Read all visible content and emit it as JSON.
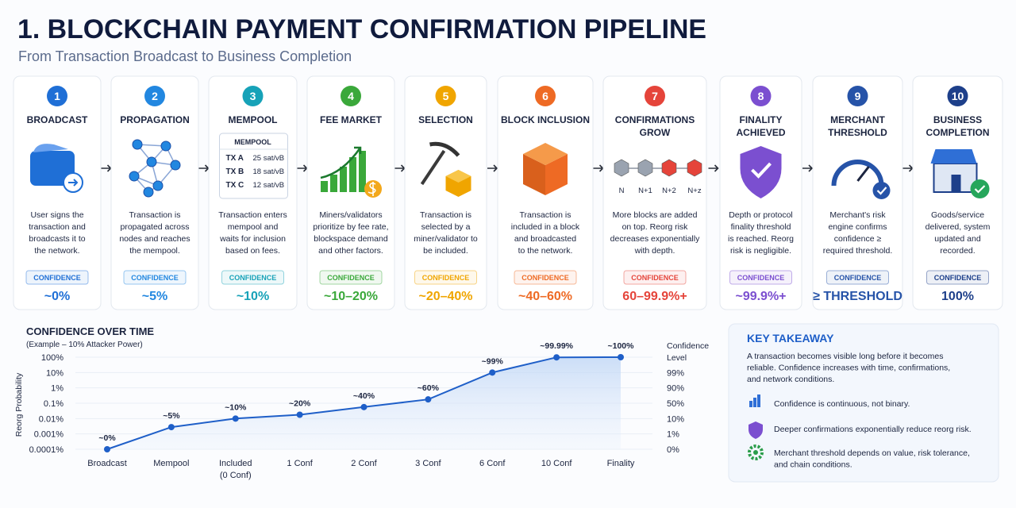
{
  "header": {
    "title": "1. BLOCKCHAIN PAYMENT CONFIRMATION PIPELINE",
    "subtitle": "From Transaction Broadcast to Business Completion"
  },
  "steps": [
    {
      "number": "1",
      "title": "BROADCAST",
      "description": "User signs the\ntransaction and\nbroadcasts it to\nthe network.",
      "confidence_label": "CONFIDENCE",
      "confidence": "~0%",
      "color": "#1f6fd6"
    },
    {
      "number": "2",
      "title": "PROPAGATION",
      "description": "Transaction is\npropagated across\nnodes and reaches\nthe mempool.",
      "confidence_label": "CONFIDENCE",
      "confidence": "~5%",
      "color": "#2287e0"
    },
    {
      "number": "3",
      "title": "MEMPOOL",
      "description": "Transaction enters\nmempool and\nwaits for inclusion\nbased on fees.",
      "confidence_label": "CONFIDENCE",
      "confidence": "~10%",
      "color": "#17a2b8"
    },
    {
      "number": "4",
      "title": "FEE MARKET",
      "description": "Miners/validators\nprioritize by fee rate,\nblockspace demand\nand other factors.",
      "confidence_label": "CONFIDENCE",
      "confidence": "~10–20%",
      "color": "#3aa83a"
    },
    {
      "number": "5",
      "title": "SELECTION",
      "description": "Transaction is\nselected by a\nminer/validator to\nbe included.",
      "confidence_label": "CONFIDENCE",
      "confidence": "~20–40%",
      "color": "#f0a500"
    },
    {
      "number": "6",
      "title": "BLOCK INCLUSION",
      "description": "Transaction is\nincluded in a block\nand broadcasted\nto the network.",
      "confidence_label": "CONFIDENCE",
      "confidence": "~40–60%",
      "color": "#ee6a24"
    },
    {
      "number": "7",
      "title": "CONFIRMATIONS\nGROW",
      "description": "More blocks are added\non top. Reorg risk\ndecreases exponentially\nwith depth.",
      "confidence_label": "CONFIDENCE",
      "confidence": "60–99.9%+",
      "color": "#e5443a"
    },
    {
      "number": "8",
      "title": "FINALITY\nACHIEVED",
      "description": "Depth or protocol\nfinality threshold\nis reached. Reorg\nrisk is negligible.",
      "confidence_label": "CONFIDENCE",
      "confidence": "~99.9%+",
      "color": "#7b4fd0"
    },
    {
      "number": "9",
      "title": "MERCHANT\nTHRESHOLD",
      "description": "Merchant's risk\nengine confirms\nconfidence ≥\nrequired threshold.",
      "confidence_label": "CONFIDENCE",
      "confidence": "≥ THRESHOLD",
      "color": "#2653a8"
    },
    {
      "number": "10",
      "title": "BUSINESS\nCOMPLETION",
      "description": "Goods/service\ndelivered, system\nupdated and\nrecorded.",
      "confidence_label": "CONFIDENCE",
      "confidence": "100%",
      "color": "#1d3f8a"
    }
  ],
  "mempool_table": {
    "title": "MEMPOOL",
    "rows": [
      [
        "TX A",
        "25 sat/vB"
      ],
      [
        "TX B",
        "18 sat/vB"
      ],
      [
        "TX C",
        "12 sat/vB"
      ]
    ]
  },
  "chain_labels": [
    "N",
    "N+1",
    "N+2",
    "N+z"
  ],
  "chart_data": {
    "type": "line",
    "title": "CONFIDENCE OVER TIME",
    "subtitle": "(Example – 10% Attacker Power)",
    "ylabel": "Reorg Probability",
    "y2label": "Confidence\nLevel",
    "categories": [
      "Broadcast",
      "Mempool",
      "Included\n(0 Conf)",
      "1 Conf",
      "2 Conf",
      "3 Conf",
      "6 Conf",
      "10 Conf",
      "Finality"
    ],
    "ylog": true,
    "ylim": [
      0.0001,
      100
    ],
    "yticks": [
      {
        "value": 100,
        "label": "100%"
      },
      {
        "value": 10,
        "label": "10%"
      },
      {
        "value": 1,
        "label": "1%"
      },
      {
        "value": 0.1,
        "label": "0.1%"
      },
      {
        "value": 0.01,
        "label": "0.01%"
      },
      {
        "value": 0.001,
        "label": "0.001%"
      },
      {
        "value": 0.0001,
        "label": "0.0001%"
      }
    ],
    "y2lim": [
      0,
      100
    ],
    "y2ticks": [
      {
        "value": 0,
        "label": "0%"
      },
      {
        "value": 1,
        "label": "1%"
      },
      {
        "value": 10,
        "label": "10%"
      },
      {
        "value": 50,
        "label": "50%"
      },
      {
        "value": 90,
        "label": "90%"
      },
      {
        "value": 99,
        "label": "99%"
      }
    ],
    "grid": true,
    "series": [
      {
        "name": "Confidence",
        "color": "#1f5fc8",
        "axis": "y2",
        "values": [
          0,
          5,
          10,
          20,
          40,
          60,
          99,
          99.99,
          100
        ],
        "value_labels": [
          "~0%",
          "~5%",
          "~10%",
          "~20%",
          "~40%",
          "~60%",
          "~99%",
          "~99.99%",
          "~100%"
        ]
      }
    ]
  },
  "takeaway": {
    "title": "KEY TAKEAWAY",
    "text": "A transaction becomes visible long before it becomes\nreliable. Confidence increases with time, confirmations,\nand network conditions.",
    "points": [
      "Confidence is continuous, not binary.",
      "Deeper confirmations exponentially reduce reorg risk.",
      "Merchant threshold depends on value, risk tolerance,\nand chain conditions."
    ]
  }
}
